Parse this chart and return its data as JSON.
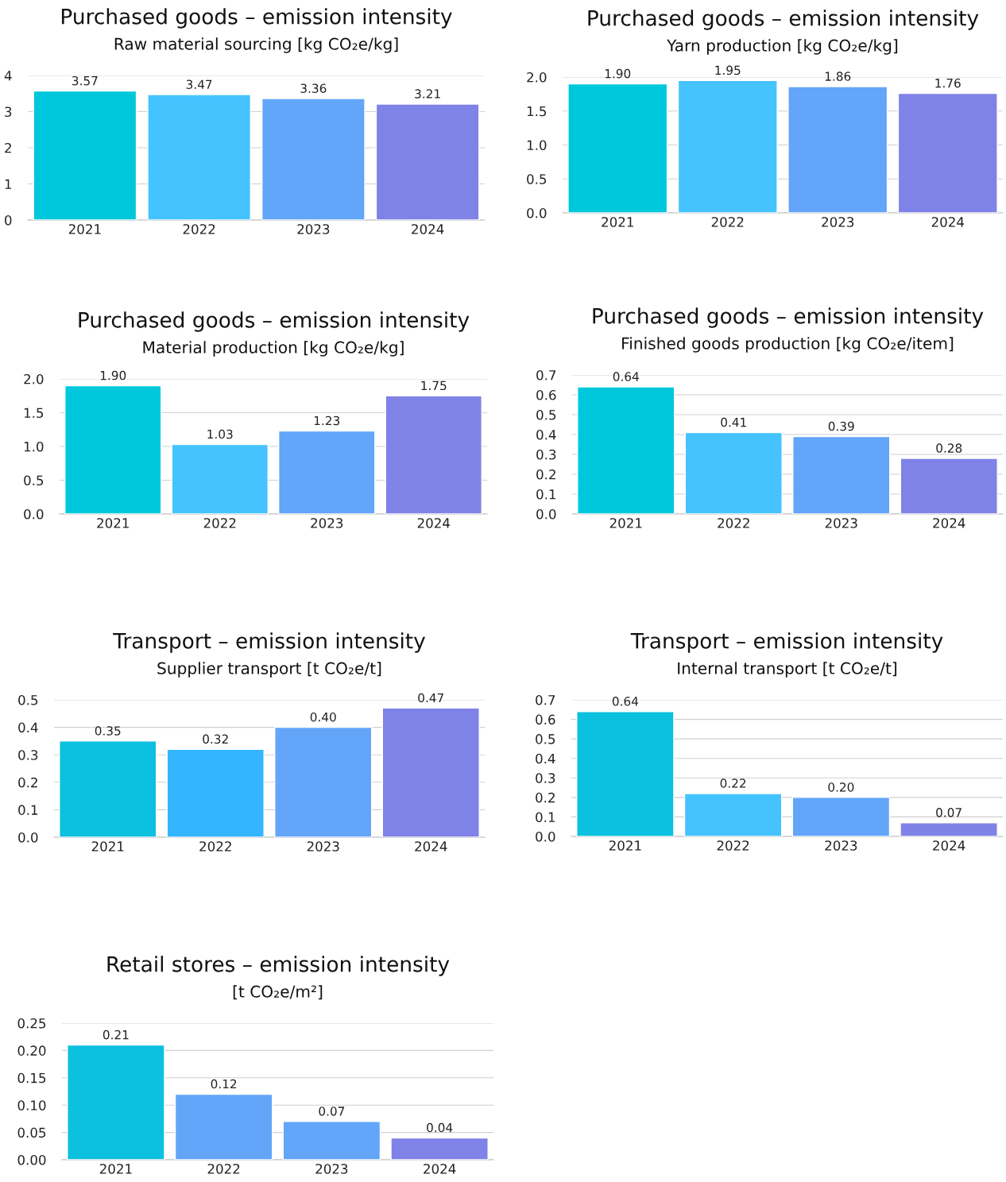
{
  "chart_data": [
    {
      "type": "bar",
      "title": "Purchased goods – emission intensity",
      "subtitle": "Raw material sourcing [kg CO₂e/kg]",
      "categories": [
        "2021",
        "2022",
        "2023",
        "2024"
      ],
      "values": [
        3.57,
        3.47,
        3.36,
        3.21
      ],
      "colors": [
        "#00c8dc",
        "#45c3ff",
        "#62a5f9",
        "#7f82e6"
      ],
      "ylim": [
        0,
        4
      ],
      "yticks": [
        0,
        1,
        2,
        3,
        4
      ],
      "grid": "y",
      "data_labels": true
    },
    {
      "type": "bar",
      "title": "Purchased goods – emission intensity",
      "subtitle": "Yarn production [kg CO₂e/kg]",
      "categories": [
        "2021",
        "2022",
        "2023",
        "2024"
      ],
      "values": [
        1.9,
        1.95,
        1.86,
        1.76
      ],
      "value_labels": [
        "1.90",
        "1.95",
        "1.86",
        "1.76"
      ],
      "colors": [
        "#00c8dc",
        "#45c3ff",
        "#62a5f9",
        "#7f82e6"
      ],
      "ylim": [
        0,
        2
      ],
      "yticks": [
        {
          "value": 0,
          "label": "0.0"
        },
        0.5,
        {
          "value": 1,
          "label": "1.0"
        },
        1.5,
        {
          "value": 2,
          "label": "2.0"
        }
      ],
      "grid": "y"
    },
    {
      "type": "bar",
      "title": "Purchased goods – emission intensity",
      "subtitle": "Material production [kg CO₂e/kg]",
      "categories": [
        "2021",
        "2022",
        "2023",
        "2024"
      ],
      "values": [
        1.9,
        1.03,
        1.23,
        1.75
      ],
      "value_labels": [
        "1.90",
        "1.03",
        "1.23",
        "1.75"
      ],
      "colors": [
        "#00c8dc",
        "#45c3ff",
        "#62a5f9",
        "#7f82e6"
      ],
      "ylim": [
        0,
        2
      ],
      "yticks": [
        {
          "value": 0,
          "label": "0.0"
        },
        0.5,
        {
          "value": 1,
          "label": "1.0"
        },
        1.5,
        {
          "value": 2,
          "label": "2.0"
        }
      ],
      "grid": "y"
    },
    {
      "type": "bar",
      "title": "Purchased goods – emission intensity",
      "subtitle": "Finished goods production [kg CO₂e/item]",
      "categories": [
        "2021",
        "2022",
        "2023",
        "2024"
      ],
      "values": [
        0.64,
        0.41,
        0.39,
        0.28
      ],
      "colors": [
        "#00c8dc",
        "#45c3ff",
        "#62a5f9",
        "#7f82e6"
      ],
      "ylim": [
        0,
        0.7
      ],
      "yticks": [
        {
          "value": 0,
          "label": "0.0"
        },
        0.1,
        0.2,
        0.3,
        0.4,
        0.5,
        0.6,
        0.7
      ],
      "grid": "y",
      "data_labels": true
    },
    {
      "type": "bar",
      "title": "Transport – emission intensity",
      "subtitle": "Supplier transport [t CO₂e/t]",
      "categories": [
        "2021",
        "2022",
        "2023",
        "2024"
      ],
      "values": [
        0.35,
        0.32,
        0.4,
        0.47
      ],
      "value_labels": [
        "0.35",
        "0.32",
        "0.40",
        "0.47"
      ],
      "colors": [
        "#0cc0df",
        "#33b5ff",
        "#63a5f8",
        "#7f82e6"
      ],
      "ylim": [
        0,
        0.5
      ],
      "yticks": [
        {
          "value": 0,
          "label": "0.0"
        },
        0.1,
        0.2,
        0.3,
        0.4,
        0.5
      ],
      "grid": "y"
    },
    {
      "type": "bar",
      "title": "Transport – emission intensity",
      "subtitle": "Internal transport [t CO₂e/t]",
      "categories": [
        "2021",
        "2022",
        "2023",
        "2024"
      ],
      "values": [
        0.64,
        0.22,
        0.2,
        0.07
      ],
      "value_labels": [
        "0.64",
        "0.22",
        "0.20",
        "0.07"
      ],
      "colors": [
        "#0cc0df",
        "#45c3ff",
        "#62a5f9",
        "#7f82e6"
      ],
      "ylim": [
        0,
        0.7
      ],
      "yticks": [
        {
          "value": 0,
          "label": "0.0"
        },
        0.1,
        0.2,
        0.3,
        0.4,
        0.5,
        0.6,
        0.7
      ],
      "grid": "y"
    },
    {
      "type": "bar",
      "title": "Retail stores – emission intensity",
      "subtitle": "[t CO₂e/m²]",
      "categories": [
        "2021",
        "2022",
        "2023",
        "2024"
      ],
      "values": [
        0.21,
        0.12,
        0.07,
        0.04
      ],
      "colors": [
        "#0cc0df",
        "#63a5f8",
        "#63a5f8",
        "#7f82e6"
      ],
      "ylim": [
        0,
        0.25
      ],
      "yticks": [
        {
          "value": 0,
          "label": "0.00"
        },
        {
          "value": 0.05,
          "label": "0.05"
        },
        {
          "value": 0.1,
          "label": "0.10"
        },
        {
          "value": 0.15,
          "label": "0.15"
        },
        {
          "value": 0.2,
          "label": "0.20"
        },
        {
          "value": 0.25,
          "label": "0.25"
        }
      ],
      "grid": "y",
      "data_labels": true
    }
  ]
}
